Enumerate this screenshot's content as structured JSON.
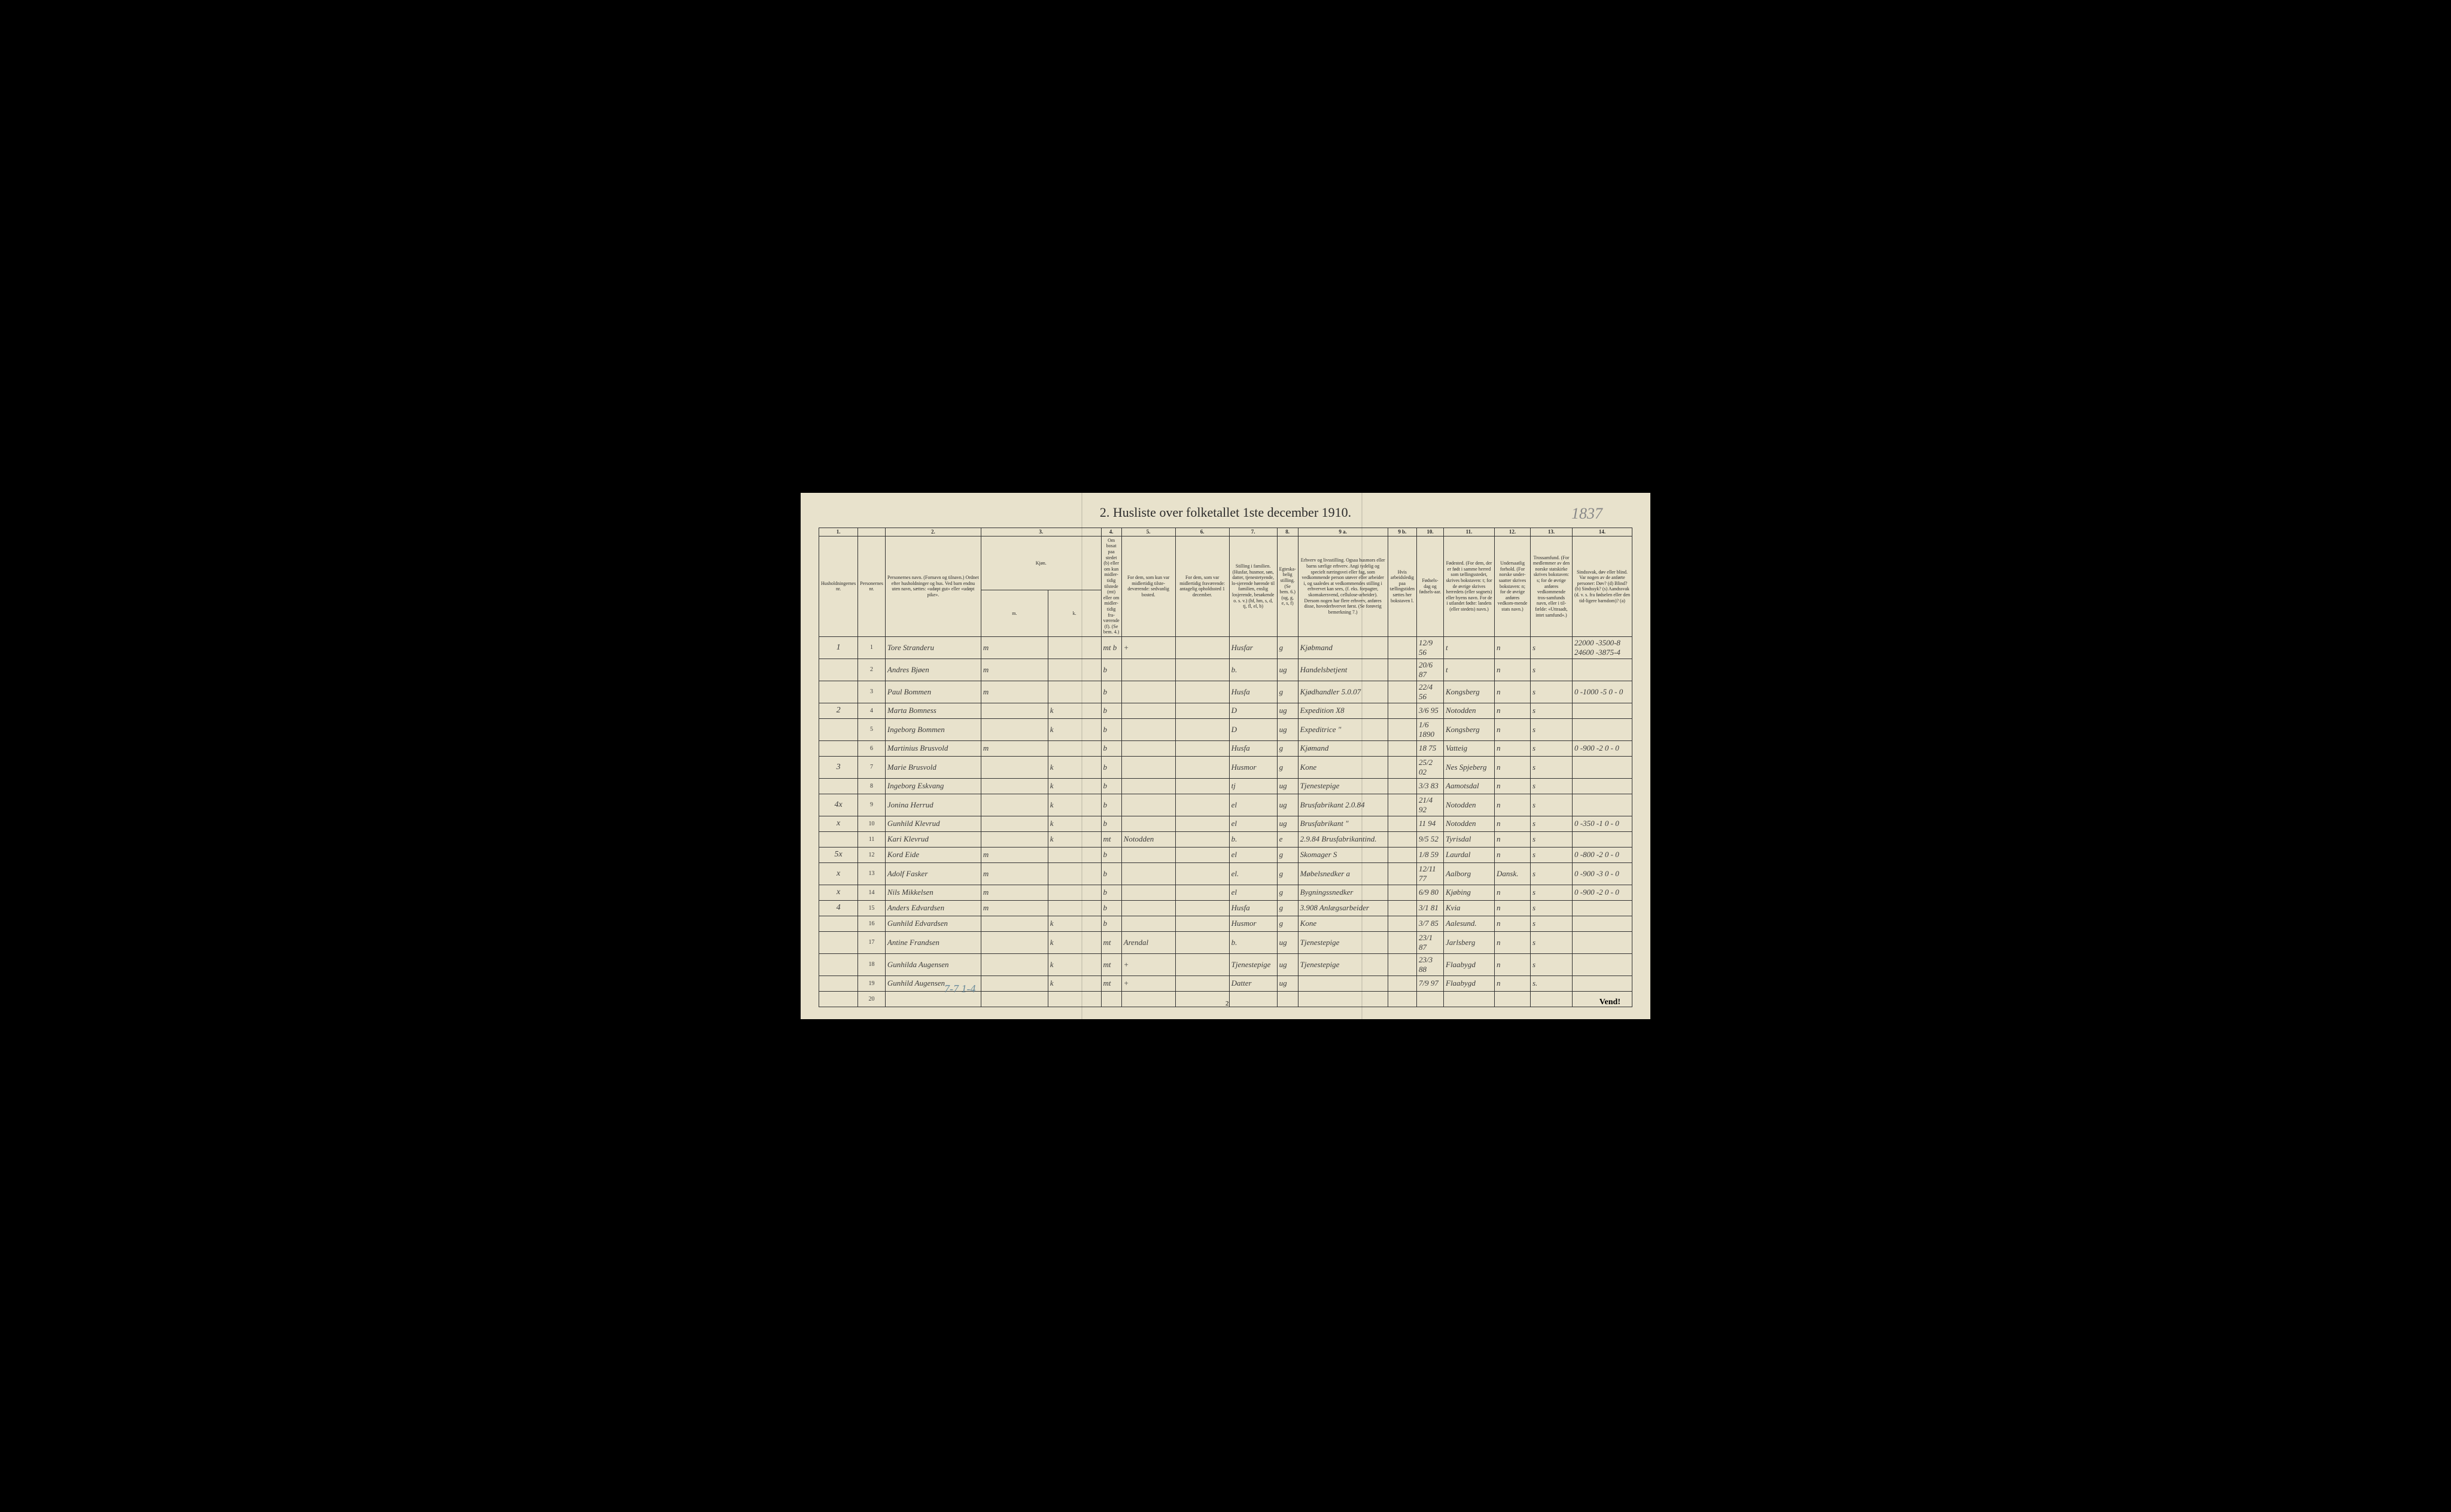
{
  "title": "2. Husliste over folketallet 1ste december 1910.",
  "handwritten_top": "1837",
  "bottom_note": "Vend!",
  "bottom_page": "2",
  "bottom_handwritten": "7-7   1-4",
  "col_numbers": [
    "1.",
    "",
    "2.",
    "3.",
    "",
    "4.",
    "5.",
    "6.",
    "7.",
    "8.",
    "9 a.",
    "9 b.",
    "10.",
    "11.",
    "12.",
    "13.",
    "14."
  ],
  "headers": {
    "col1": "Husholdningernes nr.",
    "col1b": "Personernes nr.",
    "col2": "Personernes navn.\n(Fornavn og tilnavn.)\nOrdnet efter husholdninger og hus.\nVed barn endnu uten navn, sættes: «udøpt gut»\neller «udøpt pike».",
    "col3": "Kjøn.",
    "col3a": "Mand.",
    "col3b": "Kvinder.",
    "col4": "Om bosat paa stedet (b) eller om kun midler-tidig tilstede (mt) eller om midler-tidig fra-værende (f).\n(Se bem. 4.)",
    "col5": "For dem, som kun var midlertidig tilste-deværende:\nsedvanlig bosted.",
    "col6": "For dem, som var midlertidig fraværende:\nantagelig opholdssted 1 december.",
    "col7": "Stilling i familien.\n(Husfar, husmor, søn, datter, tjenestetyende, lo-sjerende hørende til familien, enslig losjerende, besøkende o. s. v.)\n(hf, hm, s, d, tj, fl, el, b)",
    "col8": "Egteska-belig stilling.\n(Se bem. 6.)\n(ug, g, e, s, f)",
    "col9a": "Erhverv og livsstilling.\nOgsaa husmors eller barns særlige erhverv.\nAngi tydelig og specielt næringsvei eller fag, som vedkommende person utøver eller arbeider i, og saaledes at vedkommendes stilling i erhvervet kan sees, (f. eks. forpagter, skomakersvend, cellulose-arbeider). Dersom nogen har flere erhverv, anføres disse, hovederhvervet først.\n(Se forøvrig bemerkning 7.)",
    "col9b": "Hvis arbeidsledig paa tællingstiden sættes her bokstaven l.",
    "col10": "Fødsels-dag og fødsels-aar.",
    "col11": "Fødested.\n(For dem, der er født i samme herred som tællingsstedet, skrives bokstaven: t; for de øvrige skrives herredets (eller sognets) eller byens navn.\nFor de i utlandet fødte: landets (eller stedets) navn.)",
    "col12": "Undersaatlig forhold.\n(For norske under-saatter skrives bokstaven: n; for de øvrige anføres vedkom-mende stats navn.)",
    "col13": "Trossamfund.\n(For medlemmer av den norske statskirke skrives bokstaven: s; for de øvrige anføres vedkommende tros-samfunds navn, eller i til-fælde: «Uttraadt, intet samfund».)",
    "col14": "Sindssvak, døv eller blind.\nVar nogen av de anførte personer:\nDøv? (d)\nBlind? (b)\nSindssyk? (s)\nAandssvak (d. v. s. fra fødselen eller den tid-ligere barndom)? (a)"
  },
  "rows": [
    {
      "hh": "1",
      "pn": "1",
      "name": "Tore Stranderu",
      "m": "m",
      "k": "",
      "stat": "mt b",
      "res": "+",
      "away": "",
      "fam": "Husfar",
      "mar": "g",
      "occ": "Kjøbmand",
      "l": "",
      "dob": "12/9 56",
      "birthplace": "t",
      "nat": "n",
      "rel": "s",
      "notes": "22000 -3500-8\n24600 -3875-4"
    },
    {
      "hh": "",
      "pn": "2",
      "name": "Andres Bjøen",
      "m": "m",
      "k": "",
      "stat": "b",
      "res": "",
      "away": "",
      "fam": "b.",
      "mar": "ug",
      "occ": "Handelsbetjent",
      "l": "",
      "dob": "20/6 87",
      "birthplace": "t",
      "nat": "n",
      "rel": "s",
      "notes": ""
    },
    {
      "hh": "",
      "pn": "3",
      "name": "Paul Bommen",
      "m": "m",
      "k": "",
      "stat": "b",
      "res": "",
      "away": "",
      "fam": "Husfa",
      "mar": "g",
      "occ": "Kjødhandler 5.0.07",
      "l": "",
      "dob": "22/4 56",
      "birthplace": "Kongsberg",
      "nat": "n",
      "rel": "s",
      "notes": "0 -1000 -5\n0 - 0"
    },
    {
      "hh": "2",
      "pn": "4",
      "name": "Marta Bomness",
      "m": "",
      "k": "k",
      "stat": "b",
      "res": "",
      "away": "",
      "fam": "D",
      "mar": "ug",
      "occ": "Expedition X8",
      "l": "",
      "dob": "3/6 95",
      "birthplace": "Notodden",
      "nat": "n",
      "rel": "s",
      "notes": ""
    },
    {
      "hh": "",
      "pn": "5",
      "name": "Ingeborg Bommen",
      "m": "",
      "k": "k",
      "stat": "b",
      "res": "",
      "away": "",
      "fam": "D",
      "mar": "ug",
      "occ": "Expeditrice \"",
      "l": "",
      "dob": "1/6 1890",
      "birthplace": "Kongsberg",
      "nat": "n",
      "rel": "s",
      "notes": ""
    },
    {
      "hh": "",
      "pn": "6",
      "name": "Martinius Brusvold",
      "m": "m",
      "k": "",
      "stat": "b",
      "res": "",
      "away": "",
      "fam": "Husfa",
      "mar": "g",
      "occ": "Kjømand",
      "l": "",
      "dob": "18 75",
      "birthplace": "Vatteig",
      "nat": "n",
      "rel": "s",
      "notes": "0 -900 -2\n0 - 0"
    },
    {
      "hh": "3",
      "pn": "7",
      "name": "Marie Brusvold",
      "m": "",
      "k": "k",
      "stat": "b",
      "res": "",
      "away": "",
      "fam": "Husmor",
      "mar": "g",
      "occ": "Kone",
      "l": "",
      "dob": "25/2 02",
      "birthplace": "Nes Spjeberg",
      "nat": "n",
      "rel": "s",
      "notes": ""
    },
    {
      "hh": "",
      "pn": "8",
      "name": "Ingeborg Eskvang",
      "m": "",
      "k": "k",
      "stat": "b",
      "res": "",
      "away": "",
      "fam": "tj",
      "mar": "ug",
      "occ": "Tjenestepige",
      "l": "",
      "dob": "3/3 83",
      "birthplace": "Aamotsdal",
      "nat": "n",
      "rel": "s",
      "notes": ""
    },
    {
      "hh": "4x",
      "pn": "9",
      "name": "Jonina Herrud",
      "m": "",
      "k": "k",
      "stat": "b",
      "res": "",
      "away": "",
      "fam": "el",
      "mar": "ug",
      "occ": "Brusfabrikant 2.0.84",
      "l": "",
      "dob": "21/4 92",
      "birthplace": "Notodden",
      "nat": "n",
      "rel": "s",
      "notes": ""
    },
    {
      "hh": "x",
      "pn": "10",
      "name": "Gunhild Klevrud",
      "m": "",
      "k": "k",
      "stat": "b",
      "res": "",
      "away": "",
      "fam": "el",
      "mar": "ug",
      "occ": "Brusfabrikant \"",
      "l": "",
      "dob": "11 94",
      "birthplace": "Notodden",
      "nat": "n",
      "rel": "s",
      "notes": "0 -350 -1\n0 - 0"
    },
    {
      "hh": "",
      "pn": "11",
      "name": "Kari Klevrud",
      "m": "",
      "k": "k",
      "stat": "mt",
      "res": "Notodden",
      "away": "",
      "fam": "b.",
      "mar": "e",
      "occ": "2.9.84 Brusfabrikantind.",
      "l": "",
      "dob": "9/5 52",
      "birthplace": "Tyrisdal",
      "nat": "n",
      "rel": "s",
      "notes": ""
    },
    {
      "hh": "5x",
      "pn": "12",
      "name": "Kord Eide",
      "m": "m",
      "k": "",
      "stat": "b",
      "res": "",
      "away": "",
      "fam": "el",
      "mar": "g",
      "occ": "Skomager S",
      "l": "",
      "dob": "1/8 59",
      "birthplace": "Laurdal",
      "nat": "n",
      "rel": "s",
      "notes": "0 -800 -2\n0 - 0"
    },
    {
      "hh": "x",
      "pn": "13",
      "name": "Adolf Fasker",
      "m": "m",
      "k": "",
      "stat": "b",
      "res": "",
      "away": "",
      "fam": "el.",
      "mar": "g",
      "occ": "Møbelsnedker a",
      "l": "",
      "dob": "12/11 77",
      "birthplace": "Aalborg",
      "nat": "Dansk.",
      "rel": "s",
      "notes": "0 -900 -3\n0 - 0"
    },
    {
      "hh": "x",
      "pn": "14",
      "name": "Nils Mikkelsen",
      "m": "m",
      "k": "",
      "stat": "b",
      "res": "",
      "away": "",
      "fam": "el",
      "mar": "g",
      "occ": "Bygningssnedker",
      "l": "",
      "dob": "6/9 80",
      "birthplace": "Kjøbing",
      "nat": "n",
      "rel": "s",
      "notes": "0 -900 -2\n0 - 0"
    },
    {
      "hh": "4",
      "pn": "15",
      "name": "Anders Edvardsen",
      "m": "m",
      "k": "",
      "stat": "b",
      "res": "",
      "away": "",
      "fam": "Husfa",
      "mar": "g",
      "occ": "3.908 Anlægsarbeider",
      "l": "",
      "dob": "3/1 81",
      "birthplace": "Kvia",
      "nat": "n",
      "rel": "s",
      "notes": ""
    },
    {
      "hh": "",
      "pn": "16",
      "name": "Gunhild Edvardsen",
      "m": "",
      "k": "k",
      "stat": "b",
      "res": "",
      "away": "",
      "fam": "Husmor",
      "mar": "g",
      "occ": "Kone",
      "l": "",
      "dob": "3/7 85",
      "birthplace": "Aalesund.",
      "nat": "n",
      "rel": "s",
      "notes": ""
    },
    {
      "hh": "",
      "pn": "17",
      "name": "Antine Frandsen",
      "m": "",
      "k": "k",
      "stat": "mt",
      "res": "Arendal",
      "away": "",
      "fam": "b.",
      "mar": "ug",
      "occ": "Tjenestepige",
      "l": "",
      "dob": "23/1 87",
      "birthplace": "Jarlsberg",
      "nat": "n",
      "rel": "s",
      "notes": ""
    },
    {
      "hh": "",
      "pn": "18",
      "name": "Gunhilda Augensen",
      "m": "",
      "k": "k",
      "stat": "mt",
      "res": "+",
      "away": "",
      "fam": "Tjenestepige",
      "mar": "ug",
      "occ": "Tjenestepige",
      "l": "",
      "dob": "23/3 88",
      "birthplace": "Flaabygd",
      "nat": "n",
      "rel": "s",
      "notes": ""
    },
    {
      "hh": "",
      "pn": "19",
      "name": "Gunhild Augensen",
      "m": "",
      "k": "k",
      "stat": "mt",
      "res": "+",
      "away": "",
      "fam": "Datter",
      "mar": "ug",
      "occ": "",
      "l": "",
      "dob": "7/9 97",
      "birthplace": "Flaabygd",
      "nat": "n",
      "rel": "s.",
      "notes": ""
    },
    {
      "hh": "",
      "pn": "20",
      "name": "",
      "m": "",
      "k": "",
      "stat": "",
      "res": "",
      "away": "",
      "fam": "",
      "mar": "",
      "occ": "",
      "l": "",
      "dob": "",
      "birthplace": "",
      "nat": "",
      "rel": "",
      "notes": ""
    }
  ],
  "sub_headers": {
    "m": "m.",
    "k": "k."
  }
}
